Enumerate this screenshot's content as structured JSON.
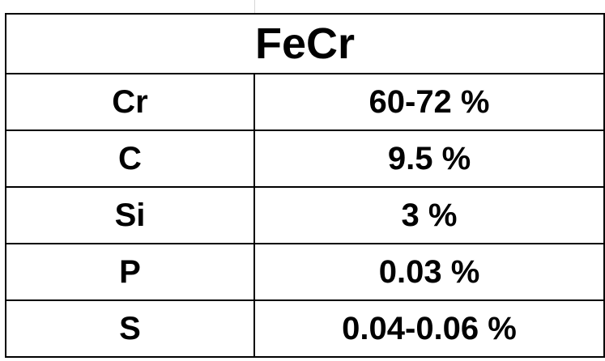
{
  "title": "FeCr",
  "rows": [
    {
      "element": "Cr",
      "value": "60-72 %"
    },
    {
      "element": "C",
      "value": "9.5 %"
    },
    {
      "element": "Si",
      "value": "3 %"
    },
    {
      "element": "P",
      "value": "0.03 %"
    },
    {
      "element": "S",
      "value": "0.04-0.06 %"
    }
  ]
}
